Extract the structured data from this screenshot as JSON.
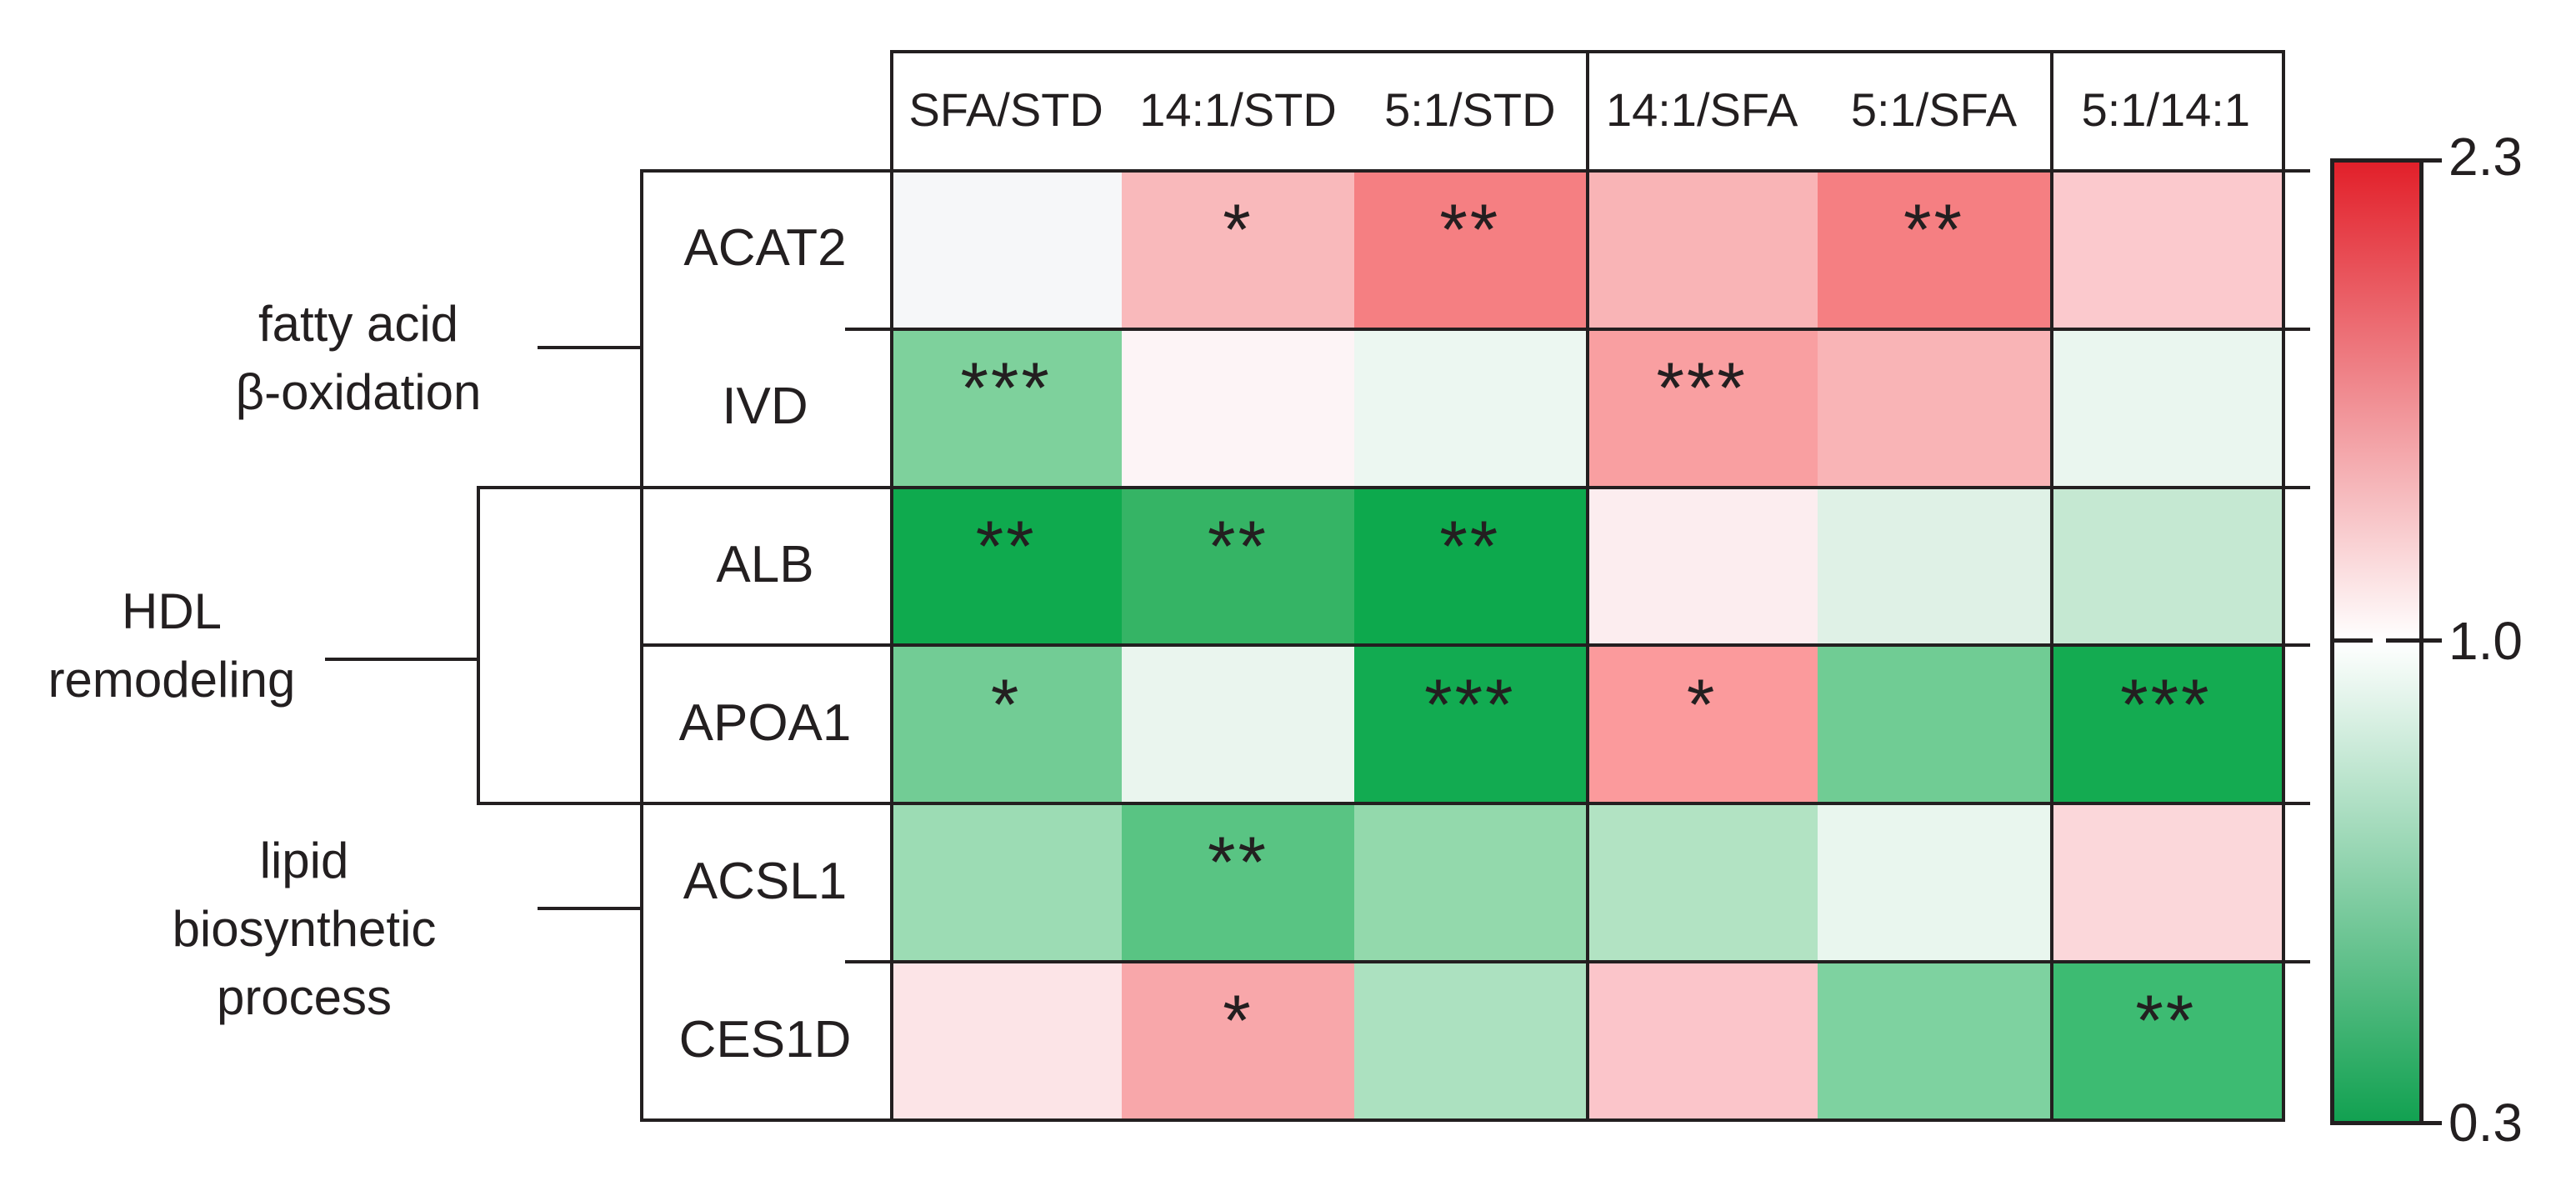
{
  "chart_data": {
    "type": "heatmap",
    "title": "",
    "columns": [
      "SFA/STD",
      "14:1/STD",
      "5:1/STD",
      "14:1/SFA",
      "5:1/SFA",
      "5:1/14:1"
    ],
    "column_groups": [
      [
        "SFA/STD",
        "14:1/STD",
        "5:1/STD"
      ],
      [
        "14:1/SFA",
        "5:1/SFA"
      ],
      [
        "5:1/14:1"
      ]
    ],
    "row_groups": [
      {
        "label": "fatty acid\nβ-oxidation",
        "genes": [
          "ACAT2",
          "IVD"
        ]
      },
      {
        "label": "HDL\nremodeling",
        "genes": [
          "ALB",
          "APOA1"
        ]
      },
      {
        "label": "lipid\nbiosynthetic\nprocess",
        "genes": [
          "ACSL1",
          "CES1D"
        ]
      }
    ],
    "rows": [
      {
        "gene": "ACAT2",
        "cells": [
          {
            "value": 1.0,
            "sig": "",
            "color": "#f6f7f9"
          },
          {
            "value": 1.4,
            "sig": "*",
            "color": "#f9b9bb"
          },
          {
            "value": 1.75,
            "sig": "**",
            "color": "#f57f82"
          },
          {
            "value": 1.4,
            "sig": "",
            "color": "#f9b4b6"
          },
          {
            "value": 1.75,
            "sig": "**",
            "color": "#f57f82"
          },
          {
            "value": 1.25,
            "sig": "",
            "color": "#fbc9cd"
          }
        ]
      },
      {
        "gene": "IVD",
        "cells": [
          {
            "value": 0.65,
            "sig": "***",
            "color": "#7ed19c"
          },
          {
            "value": 1.03,
            "sig": "",
            "color": "#fdf4f6"
          },
          {
            "value": 0.95,
            "sig": "",
            "color": "#ecf7f1"
          },
          {
            "value": 1.5,
            "sig": "***",
            "color": "#f99fa1"
          },
          {
            "value": 1.4,
            "sig": "",
            "color": "#f9b4b6"
          },
          {
            "value": 0.95,
            "sig": "",
            "color": "#eaf6ef"
          }
        ]
      },
      {
        "gene": "ALB",
        "cells": [
          {
            "value": 0.35,
            "sig": "**",
            "color": "#0faa4e"
          },
          {
            "value": 0.45,
            "sig": "**",
            "color": "#35b465"
          },
          {
            "value": 0.35,
            "sig": "**",
            "color": "#0da94d"
          },
          {
            "value": 1.08,
            "sig": "",
            "color": "#fcedef"
          },
          {
            "value": 0.92,
            "sig": "",
            "color": "#dff1e6"
          },
          {
            "value": 0.85,
            "sig": "",
            "color": "#c5e8d2"
          }
        ]
      },
      {
        "gene": "APOA1",
        "cells": [
          {
            "value": 0.6,
            "sig": "*",
            "color": "#72cc95"
          },
          {
            "value": 0.95,
            "sig": "",
            "color": "#eaf5ee"
          },
          {
            "value": 0.35,
            "sig": "***",
            "color": "#12ab51"
          },
          {
            "value": 1.5,
            "sig": "*",
            "color": "#fb9a9c"
          },
          {
            "value": 0.6,
            "sig": "",
            "color": "#70cc94"
          },
          {
            "value": 0.35,
            "sig": "***",
            "color": "#14ab51"
          }
        ]
      },
      {
        "gene": "ACSL1",
        "cells": [
          {
            "value": 0.72,
            "sig": "",
            "color": "#9cdcb4"
          },
          {
            "value": 0.55,
            "sig": "**",
            "color": "#59c483"
          },
          {
            "value": 0.7,
            "sig": "",
            "color": "#93d9ac"
          },
          {
            "value": 0.82,
            "sig": "",
            "color": "#b2e3c3"
          },
          {
            "value": 0.95,
            "sig": "",
            "color": "#e9f6ee"
          },
          {
            "value": 1.2,
            "sig": "",
            "color": "#fbd7da"
          }
        ]
      },
      {
        "gene": "CES1D",
        "cells": [
          {
            "value": 1.15,
            "sig": "",
            "color": "#fce4e7"
          },
          {
            "value": 1.45,
            "sig": "*",
            "color": "#f8a7aa"
          },
          {
            "value": 0.8,
            "sig": "",
            "color": "#ace1c0"
          },
          {
            "value": 1.3,
            "sig": "",
            "color": "#fbc5ca"
          },
          {
            "value": 0.62,
            "sig": "",
            "color": "#7ed2a0"
          },
          {
            "value": 0.5,
            "sig": "**",
            "color": "#3dbb72"
          }
        ]
      }
    ],
    "colorbar": {
      "max_label": "2.3",
      "mid_label": "1.0",
      "min_label": "0.3",
      "max_color": "#e2202a",
      "mid_color": "#ffffff",
      "min_color": "#12a151"
    },
    "layout_hints": {
      "legend_position": "right",
      "grid": "group dividers only",
      "scale_midpoint_marker": "dashed line at 1.0"
    }
  }
}
